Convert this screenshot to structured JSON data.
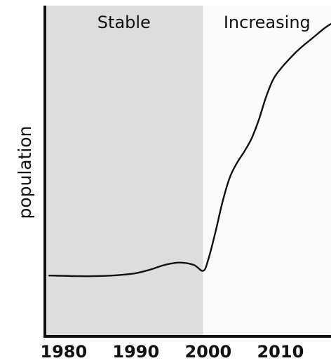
{
  "chart_data": {
    "type": "line",
    "title": "",
    "xlabel": "",
    "ylabel": "population",
    "xlim": [
      1977.4,
      2017
    ],
    "ylim": [
      0,
      100
    ],
    "x_ticks": [
      1980,
      1990,
      2000,
      2010
    ],
    "y_ticks": [],
    "grid": false,
    "regions": [
      {
        "label": "Stable",
        "x_start": 1977.4,
        "x_end": 1999.3,
        "color": "#dddddd"
      },
      {
        "label": "Increasing",
        "x_start": 1999.3,
        "x_end": 2017,
        "color": "#fbfbfb"
      }
    ],
    "series": [
      {
        "color": "#111111",
        "x": [
          1978,
          1980,
          1982,
          1984,
          1986,
          1988,
          1990,
          1992,
          1994,
          1996,
          1998,
          1999.3,
          2000,
          2001,
          2002,
          2003,
          2004,
          2005,
          2006,
          2007,
          2008,
          2009,
          2010,
          2011,
          2012,
          2013,
          2014,
          2015,
          2016,
          2017
        ],
        "y": [
          18.4,
          18.3,
          18.2,
          18.2,
          18.3,
          18.6,
          19.1,
          20.2,
          21.6,
          22.3,
          21.6,
          19.8,
          23.1,
          31.5,
          40.8,
          48.1,
          52.5,
          55.9,
          59.8,
          65.4,
          72.3,
          77.7,
          80.8,
          83.3,
          85.6,
          87.6,
          89.4,
          91.2,
          93.0,
          94.5
        ]
      }
    ]
  }
}
